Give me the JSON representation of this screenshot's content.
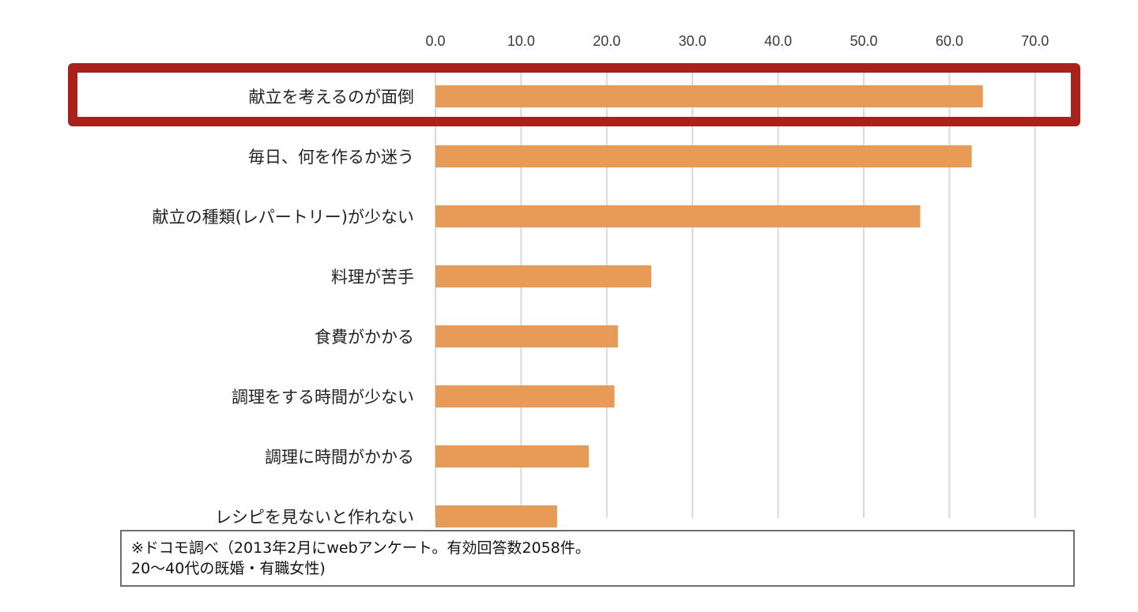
{
  "chart_data": {
    "type": "bar",
    "orientation": "horizontal",
    "title": "",
    "xlabel": "",
    "ylabel": "",
    "xlim": [
      0,
      70
    ],
    "x_ticks": [
      "0.0",
      "10.0",
      "20.0",
      "30.0",
      "40.0",
      "50.0",
      "60.0",
      "70.0"
    ],
    "tick_values": [
      0,
      10,
      20,
      30,
      40,
      50,
      60,
      70
    ],
    "axis_position": "top",
    "grid": true,
    "categories": [
      "献立を考えるのが面倒",
      "毎日、何を作るか迷う",
      "献立の種類(レパートリー)が少ない",
      "料理が苦手",
      "食費がかかる",
      "調理をする時間が少ない",
      "調理に時間がかかる",
      "レシピを見ないと作れない"
    ],
    "values": [
      63.9,
      62.6,
      56.6,
      25.2,
      21.3,
      20.9,
      17.9,
      14.2
    ],
    "highlighted_category": "献立を考えるのが面倒",
    "colors": {
      "bar": "#e89a57",
      "grid": "#d9d9d9",
      "highlight": "#a8211b"
    }
  },
  "note": {
    "line1": "※ドコモ調べ（2013年2月にwebアンケート。有効回答数2058件。",
    "line2": "20〜40代の既婚・有職女性)"
  }
}
